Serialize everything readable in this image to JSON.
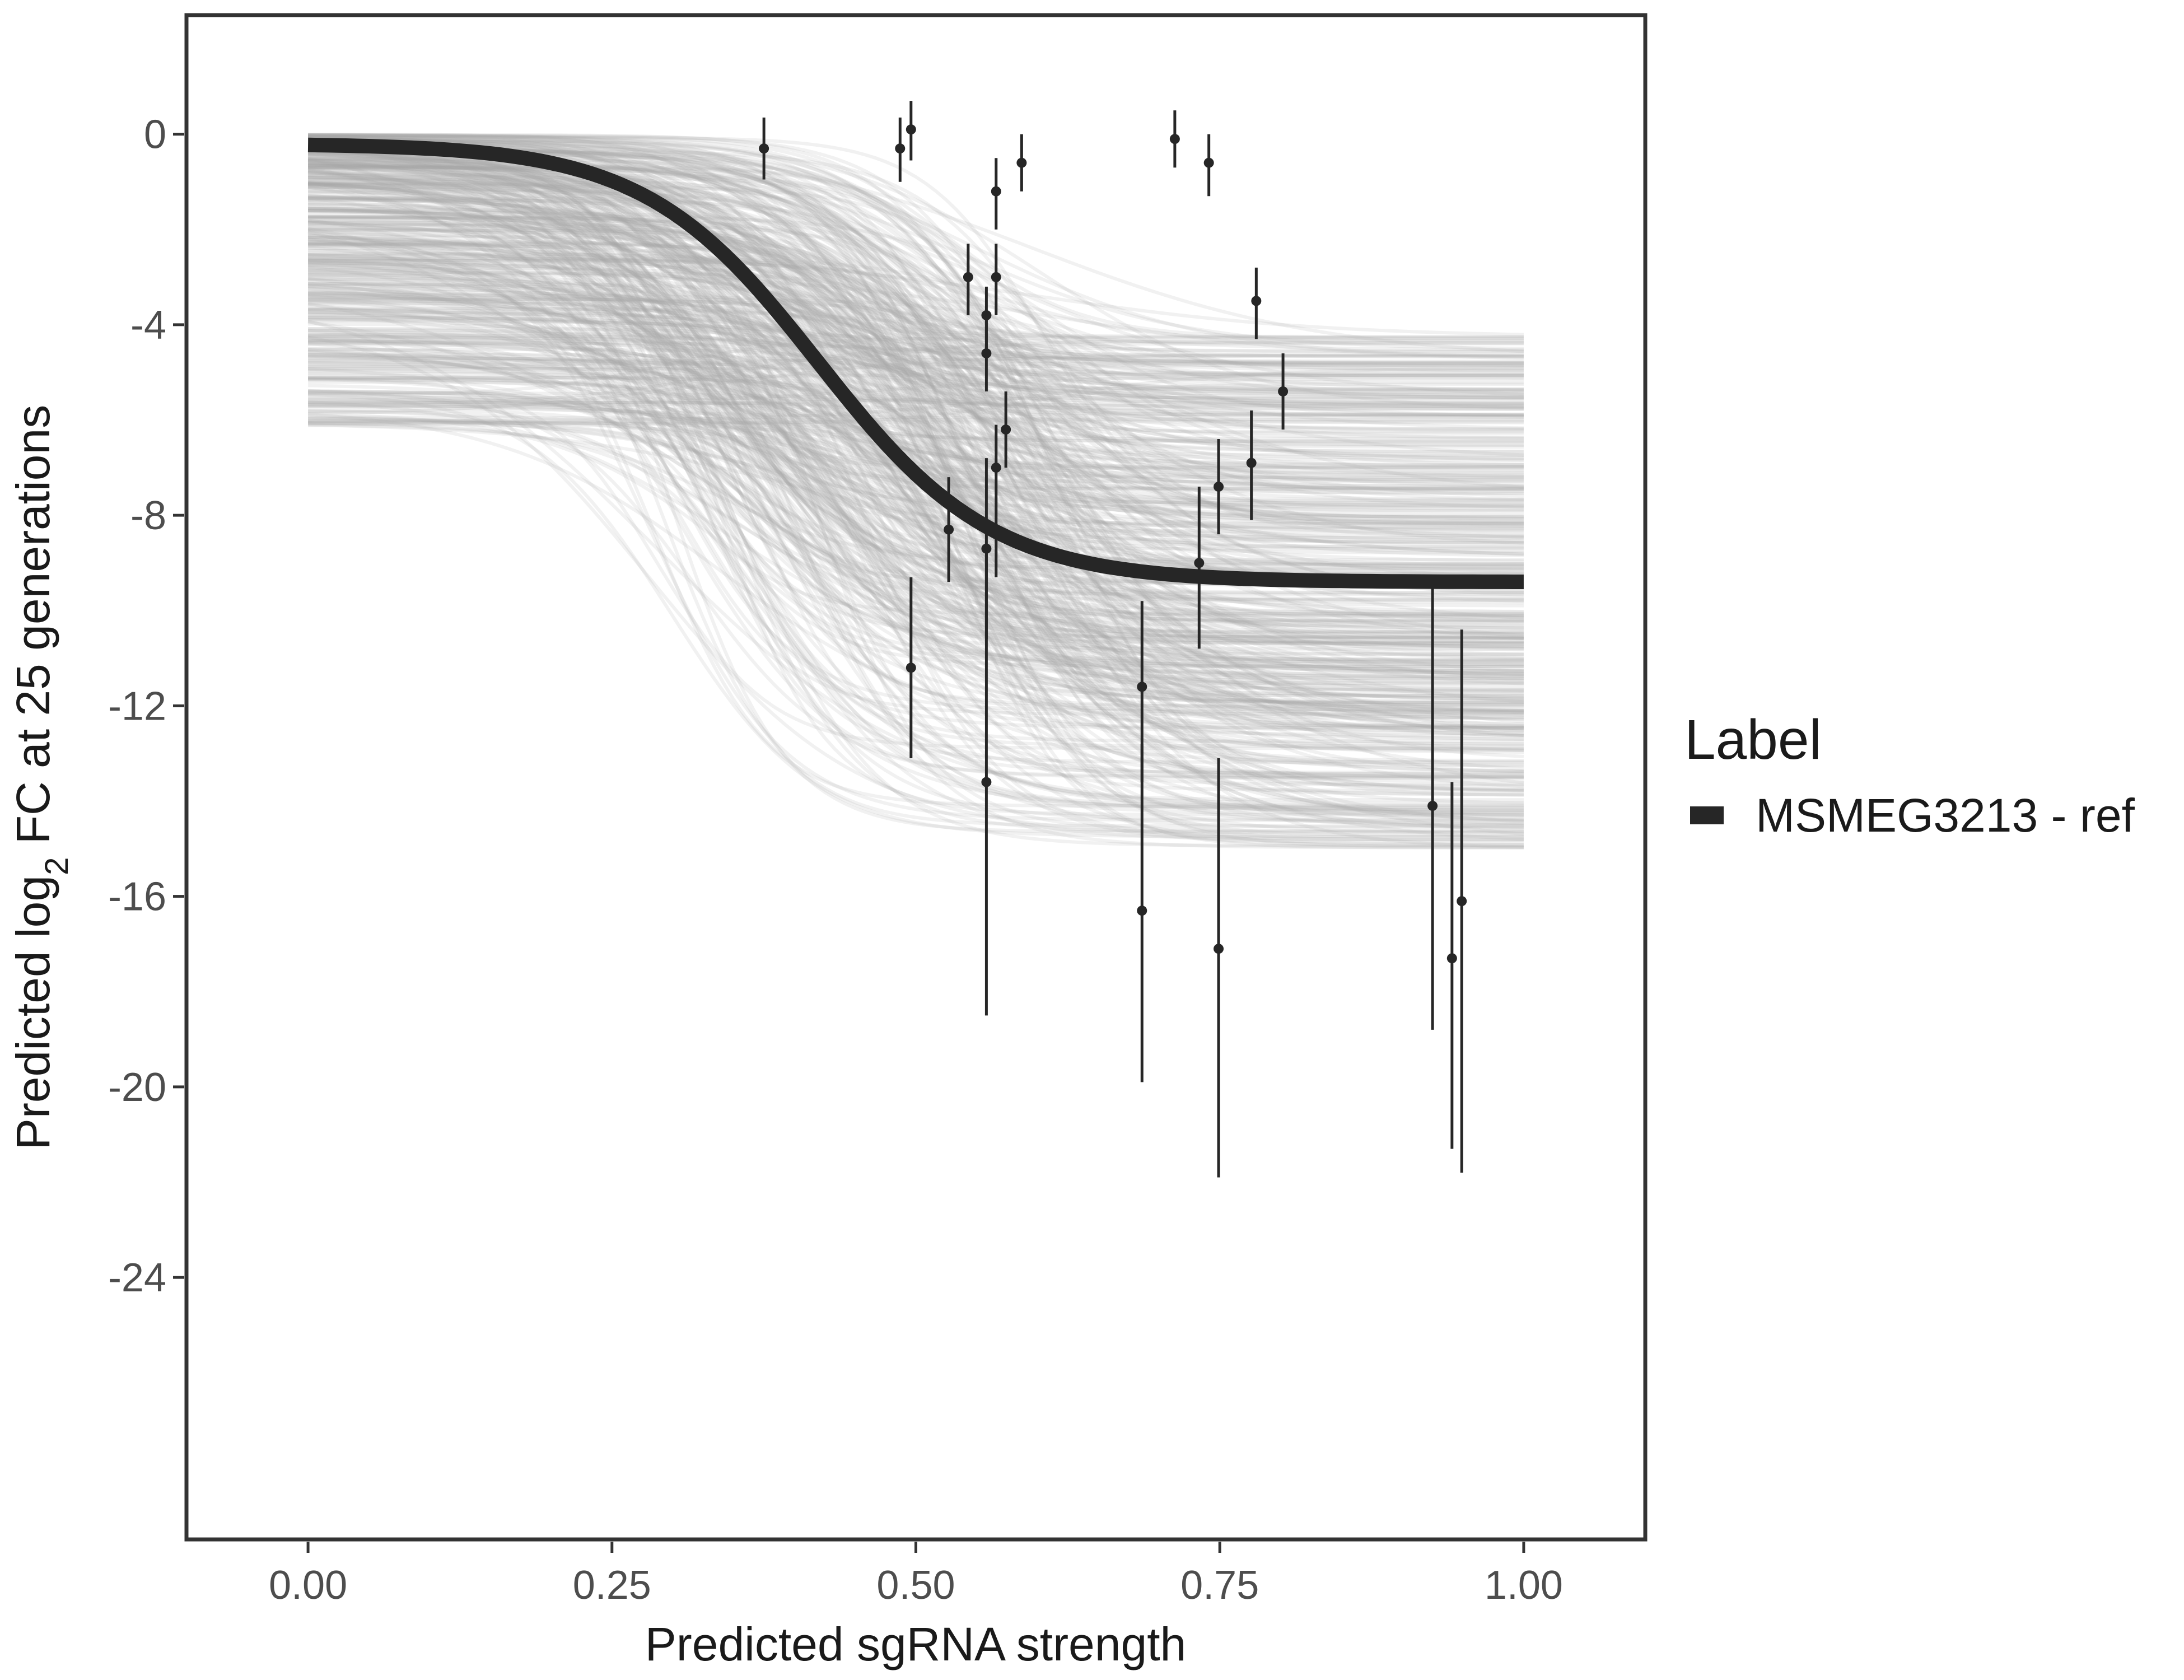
{
  "chart_data": {
    "type": "line",
    "xlabel": "Predicted sgRNA strength",
    "ylabel_parts": [
      "Predicted  log",
      "2",
      " FC at 25 generations"
    ],
    "xlim": [
      -0.1,
      1.1
    ],
    "ylim": [
      -29.5,
      2.5
    ],
    "x_ticks": [
      0,
      0.25,
      0.5,
      0.75,
      1
    ],
    "x_tick_labels": [
      "0.00",
      "0.25",
      "0.50",
      "0.75",
      "1.00"
    ],
    "y_ticks": [
      0,
      -4,
      -8,
      -12,
      -16,
      -20,
      -24
    ],
    "y_tick_labels": [
      "0",
      "-4",
      "-8",
      "-12",
      "-16",
      "-20",
      "-24"
    ],
    "grid": false,
    "legend": {
      "title": "Label",
      "position": "right",
      "entries": [
        {
          "label": "MSMEG3213 - ref",
          "color": "#262626"
        }
      ]
    },
    "main_curve": {
      "name": "MSMEG3213 - ref",
      "model": "logistic",
      "x_range": [
        0,
        1
      ],
      "start_value": -0.2,
      "plateau": -9.4,
      "midpoint": 0.42,
      "steepness": 14,
      "color": "#262626"
    },
    "posterior_draws": {
      "count": 500,
      "plateau_range": [
        -15,
        -4.2
      ],
      "start_range": [
        -6.2,
        0
      ],
      "midpoint_range": [
        0.28,
        0.62
      ],
      "steepness_range": [
        8,
        22
      ],
      "color": "#a6a6a6"
    },
    "points": [
      {
        "x": 0.375,
        "y": -0.3,
        "lo": -0.95,
        "hi": 0.35
      },
      {
        "x": 0.487,
        "y": -0.3,
        "lo": -1.0,
        "hi": 0.35
      },
      {
        "x": 0.496,
        "y": 0.1,
        "lo": -0.55,
        "hi": 0.7
      },
      {
        "x": 0.496,
        "y": -11.2,
        "lo": -13.1,
        "hi": -9.3
      },
      {
        "x": 0.527,
        "y": -8.3,
        "lo": -9.4,
        "hi": -7.2
      },
      {
        "x": 0.543,
        "y": -3.0,
        "lo": -3.8,
        "hi": -2.3
      },
      {
        "x": 0.558,
        "y": -3.8,
        "lo": -4.6,
        "hi": -3.2
      },
      {
        "x": 0.558,
        "y": -4.6,
        "lo": -5.4,
        "hi": -3.8
      },
      {
        "x": 0.558,
        "y": -8.7,
        "lo": -10.6,
        "hi": -6.8
      },
      {
        "x": 0.558,
        "y": -13.6,
        "lo": -18.5,
        "hi": -8.7
      },
      {
        "x": 0.566,
        "y": -1.2,
        "lo": -2.0,
        "hi": -0.5
      },
      {
        "x": 0.566,
        "y": -3.0,
        "lo": -3.8,
        "hi": -2.3
      },
      {
        "x": 0.566,
        "y": -7.0,
        "lo": -9.3,
        "hi": -6.1
      },
      {
        "x": 0.574,
        "y": -6.2,
        "lo": -7.0,
        "hi": -5.4
      },
      {
        "x": 0.587,
        "y": -0.6,
        "lo": -1.2,
        "hi": 0.0
      },
      {
        "x": 0.686,
        "y": -11.6,
        "lo": -13.6,
        "hi": -9.8
      },
      {
        "x": 0.686,
        "y": -16.3,
        "lo": -19.9,
        "hi": -12.8
      },
      {
        "x": 0.713,
        "y": -0.1,
        "lo": -0.7,
        "hi": 0.5
      },
      {
        "x": 0.733,
        "y": -9.0,
        "lo": -10.8,
        "hi": -7.4
      },
      {
        "x": 0.741,
        "y": -0.6,
        "lo": -1.3,
        "hi": 0.0
      },
      {
        "x": 0.749,
        "y": -7.4,
        "lo": -8.4,
        "hi": -6.4
      },
      {
        "x": 0.749,
        "y": -17.1,
        "lo": -21.9,
        "hi": -13.1
      },
      {
        "x": 0.776,
        "y": -6.9,
        "lo": -8.1,
        "hi": -5.8
      },
      {
        "x": 0.78,
        "y": -3.5,
        "lo": -4.3,
        "hi": -2.8
      },
      {
        "x": 0.802,
        "y": -5.4,
        "lo": -6.2,
        "hi": -4.6
      },
      {
        "x": 0.925,
        "y": -14.1,
        "lo": -18.8,
        "hi": -9.5
      },
      {
        "x": 0.941,
        "y": -17.3,
        "lo": -21.3,
        "hi": -13.6
      },
      {
        "x": 0.949,
        "y": -16.1,
        "lo": -21.8,
        "hi": -10.4
      }
    ]
  }
}
